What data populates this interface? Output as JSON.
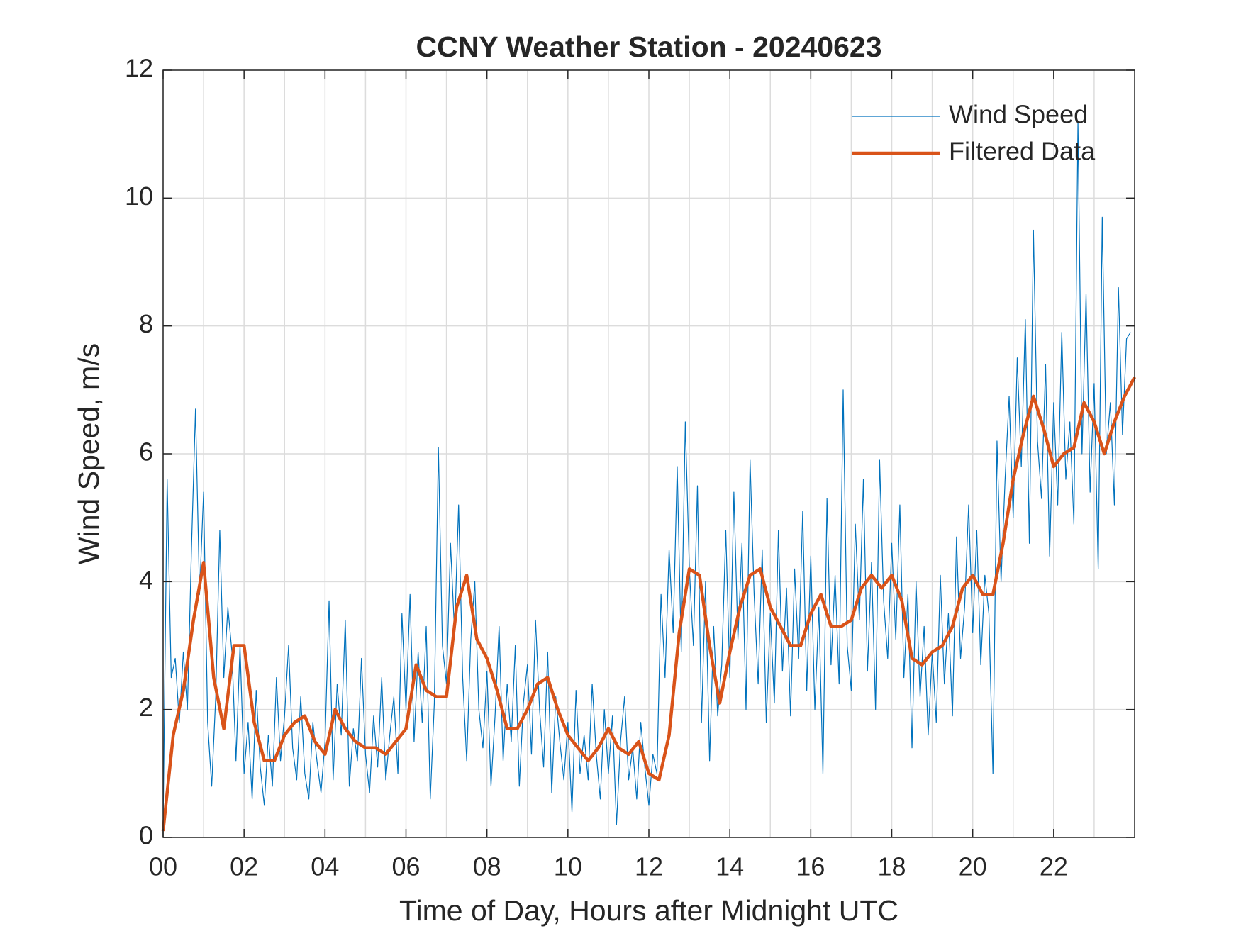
{
  "chart_data": {
    "type": "line",
    "title": "CCNY Weather Station - 20240623",
    "xlabel": "Time of Day, Hours after Midnight UTC",
    "ylabel": "Wind Speed, m/s",
    "xlim": [
      0,
      24
    ],
    "ylim": [
      0,
      12
    ],
    "xticks": [
      {
        "value": 0,
        "label": "00"
      },
      {
        "value": 2,
        "label": "02"
      },
      {
        "value": 4,
        "label": "04"
      },
      {
        "value": 6,
        "label": "06"
      },
      {
        "value": 8,
        "label": "08"
      },
      {
        "value": 10,
        "label": "10"
      },
      {
        "value": 12,
        "label": "12"
      },
      {
        "value": 14,
        "label": "14"
      },
      {
        "value": 16,
        "label": "16"
      },
      {
        "value": 18,
        "label": "18"
      },
      {
        "value": 20,
        "label": "20"
      },
      {
        "value": 22,
        "label": "22"
      }
    ],
    "xminorgrid": [
      1,
      3,
      5,
      7,
      9,
      11,
      13,
      15,
      17,
      19,
      21,
      23
    ],
    "yticks": [
      0,
      2,
      4,
      6,
      8,
      10,
      12
    ],
    "grid": true,
    "legend": "upper right",
    "series": [
      {
        "name": "Wind Speed",
        "color": "#0072BD",
        "width": 1.2,
        "x": [
          0,
          0.1,
          0.2,
          0.3,
          0.4,
          0.5,
          0.6,
          0.7,
          0.8,
          0.9,
          1,
          1.1,
          1.2,
          1.3,
          1.4,
          1.5,
          1.6,
          1.7,
          1.8,
          1.9,
          2,
          2.1,
          2.2,
          2.3,
          2.4,
          2.5,
          2.6,
          2.7,
          2.8,
          2.9,
          3,
          3.1,
          3.2,
          3.3,
          3.4,
          3.5,
          3.6,
          3.7,
          3.8,
          3.9,
          4,
          4.1,
          4.2,
          4.3,
          4.4,
          4.5,
          4.6,
          4.7,
          4.8,
          4.9,
          5,
          5.1,
          5.2,
          5.3,
          5.4,
          5.5,
          5.6,
          5.7,
          5.8,
          5.9,
          6,
          6.1,
          6.2,
          6.3,
          6.4,
          6.5,
          6.6,
          6.7,
          6.8,
          6.9,
          7,
          7.1,
          7.2,
          7.3,
          7.4,
          7.5,
          7.6,
          7.7,
          7.8,
          7.9,
          8,
          8.1,
          8.2,
          8.3,
          8.4,
          8.5,
          8.6,
          8.7,
          8.8,
          8.9,
          9,
          9.1,
          9.2,
          9.3,
          9.4,
          9.5,
          9.6,
          9.7,
          9.8,
          9.9,
          10,
          10.1,
          10.2,
          10.3,
          10.4,
          10.5,
          10.6,
          10.7,
          10.8,
          10.9,
          11,
          11.1,
          11.2,
          11.3,
          11.4,
          11.5,
          11.6,
          11.7,
          11.8,
          11.9,
          12,
          12.1,
          12.2,
          12.3,
          12.4,
          12.5,
          12.6,
          12.7,
          12.8,
          12.9,
          13,
          13.1,
          13.2,
          13.3,
          13.4,
          13.5,
          13.6,
          13.7,
          13.8,
          13.9,
          14,
          14.1,
          14.2,
          14.3,
          14.4,
          14.5,
          14.6,
          14.7,
          14.8,
          14.9,
          15,
          15.1,
          15.2,
          15.3,
          15.4,
          15.5,
          15.6,
          15.7,
          15.8,
          15.9,
          16,
          16.1,
          16.2,
          16.3,
          16.4,
          16.5,
          16.6,
          16.7,
          16.8,
          16.9,
          17,
          17.1,
          17.2,
          17.3,
          17.4,
          17.5,
          17.6,
          17.7,
          17.8,
          17.9,
          18,
          18.1,
          18.2,
          18.3,
          18.4,
          18.5,
          18.6,
          18.7,
          18.8,
          18.9,
          19,
          19.1,
          19.2,
          19.3,
          19.4,
          19.5,
          19.6,
          19.7,
          19.8,
          19.9,
          20,
          20.1,
          20.2,
          20.3,
          20.4,
          20.5,
          20.6,
          20.7,
          20.8,
          20.9,
          21,
          21.1,
          21.2,
          21.3,
          21.4,
          21.5,
          21.6,
          21.7,
          21.8,
          21.9,
          22,
          22.1,
          22.2,
          22.3,
          22.4,
          22.5,
          22.6,
          22.7,
          22.8,
          22.9,
          23,
          23.1,
          23.2,
          23.3,
          23.4,
          23.5,
          23.6,
          23.7,
          23.8,
          23.9
        ],
        "values": [
          0.2,
          5.6,
          2.5,
          2.8,
          1.8,
          2.9,
          2.0,
          4.5,
          6.7,
          3.8,
          5.4,
          1.8,
          0.8,
          2.2,
          4.8,
          2.5,
          3.6,
          2.9,
          1.2,
          3.0,
          1.0,
          1.8,
          0.6,
          2.3,
          1.1,
          0.5,
          1.6,
          0.8,
          2.5,
          1.2,
          1.9,
          3.0,
          1.4,
          0.9,
          2.2,
          1.0,
          0.6,
          1.8,
          1.2,
          0.7,
          1.5,
          3.7,
          0.9,
          2.4,
          1.6,
          3.4,
          0.8,
          1.7,
          1.2,
          2.8,
          1.3,
          0.7,
          1.9,
          1.1,
          2.5,
          0.9,
          1.6,
          2.2,
          1.0,
          3.5,
          2.0,
          3.8,
          1.5,
          2.9,
          1.8,
          3.3,
          0.6,
          2.1,
          6.1,
          3.0,
          2.4,
          4.6,
          3.2,
          5.2,
          2.5,
          1.2,
          3.1,
          4.0,
          2.0,
          1.4,
          2.6,
          0.8,
          1.9,
          3.3,
          1.2,
          2.4,
          1.5,
          3.0,
          0.8,
          2.1,
          2.7,
          1.3,
          3.4,
          2.0,
          1.1,
          2.9,
          0.7,
          2.2,
          1.5,
          0.9,
          1.8,
          0.4,
          2.3,
          1.0,
          1.6,
          0.9,
          2.4,
          1.3,
          0.6,
          2.0,
          1.0,
          1.9,
          0.2,
          1.5,
          2.2,
          0.9,
          1.4,
          0.6,
          1.8,
          1.1,
          0.5,
          1.3,
          1.0,
          3.8,
          2.5,
          4.5,
          3.2,
          5.8,
          2.9,
          6.5,
          4.2,
          3.0,
          5.5,
          1.8,
          4.0,
          1.2,
          3.3,
          1.9,
          2.7,
          4.8,
          2.5,
          5.4,
          3.1,
          4.6,
          2.0,
          5.9,
          3.8,
          2.4,
          4.5,
          1.8,
          3.5,
          2.1,
          4.8,
          2.6,
          3.9,
          1.9,
          4.2,
          2.8,
          5.1,
          2.3,
          4.4,
          2.0,
          3.6,
          1.0,
          5.3,
          2.7,
          4.1,
          2.4,
          7.0,
          3.0,
          2.3,
          4.9,
          3.4,
          5.6,
          2.6,
          4.3,
          2.0,
          5.9,
          3.7,
          2.8,
          4.6,
          3.1,
          5.2,
          2.5,
          3.8,
          1.4,
          4.0,
          2.2,
          3.3,
          1.6,
          2.9,
          1.8,
          4.1,
          2.4,
          3.5,
          1.9,
          4.7,
          2.8,
          3.6,
          5.2,
          3.2,
          4.8,
          2.7,
          4.1,
          3.5,
          1.0,
          6.2,
          4.0,
          5.6,
          6.9,
          5.0,
          7.5,
          5.8,
          8.1,
          4.6,
          9.5,
          6.2,
          5.3,
          7.4,
          4.4,
          6.8,
          5.2,
          7.9,
          5.6,
          6.5,
          4.9,
          11.2,
          6.0,
          8.5,
          5.4,
          7.1,
          4.2,
          9.7,
          6.0,
          6.8,
          5.2,
          8.6,
          6.3,
          7.8,
          7.9
        ]
      },
      {
        "name": "Filtered Data",
        "color": "#D95319",
        "width": 4.5,
        "x": [
          0,
          0.25,
          0.5,
          0.75,
          1,
          1.25,
          1.5,
          1.75,
          2,
          2.25,
          2.5,
          2.75,
          3,
          3.25,
          3.5,
          3.75,
          4,
          4.25,
          4.5,
          4.75,
          5,
          5.25,
          5.5,
          5.75,
          6,
          6.25,
          6.5,
          6.75,
          7,
          7.25,
          7.5,
          7.75,
          8,
          8.25,
          8.5,
          8.75,
          9,
          9.25,
          9.5,
          9.75,
          10,
          10.25,
          10.5,
          10.75,
          11,
          11.25,
          11.5,
          11.75,
          12,
          12.25,
          12.5,
          12.75,
          13,
          13.25,
          13.5,
          13.75,
          14,
          14.25,
          14.5,
          14.75,
          15,
          15.25,
          15.5,
          15.75,
          16,
          16.25,
          16.5,
          16.75,
          17,
          17.25,
          17.5,
          17.75,
          18,
          18.25,
          18.5,
          18.75,
          19,
          19.25,
          19.5,
          19.75,
          20,
          20.25,
          20.5,
          20.75,
          21,
          21.25,
          21.5,
          21.75,
          22,
          22.25,
          22.5,
          22.75,
          23,
          23.25,
          23.5,
          23.75,
          24
        ],
        "values": [
          0.1,
          1.6,
          2.3,
          3.4,
          4.3,
          2.5,
          1.7,
          3.0,
          3.0,
          1.8,
          1.2,
          1.2,
          1.6,
          1.8,
          1.9,
          1.5,
          1.3,
          2.0,
          1.7,
          1.5,
          1.4,
          1.4,
          1.3,
          1.5,
          1.7,
          2.7,
          2.3,
          2.2,
          2.2,
          3.6,
          4.1,
          3.1,
          2.8,
          2.3,
          1.7,
          1.7,
          2.0,
          2.4,
          2.5,
          2.0,
          1.6,
          1.4,
          1.2,
          1.4,
          1.7,
          1.4,
          1.3,
          1.5,
          1.0,
          0.9,
          1.6,
          3.2,
          4.2,
          4.1,
          3.0,
          2.1,
          2.9,
          3.6,
          4.1,
          4.2,
          3.6,
          3.3,
          3.0,
          3.0,
          3.5,
          3.8,
          3.3,
          3.3,
          3.4,
          3.9,
          4.1,
          3.9,
          4.1,
          3.7,
          2.8,
          2.7,
          2.9,
          3.0,
          3.3,
          3.9,
          4.1,
          3.8,
          3.8,
          4.6,
          5.6,
          6.3,
          6.9,
          6.4,
          5.8,
          6.0,
          6.1,
          6.8,
          6.5,
          6.0,
          6.5,
          6.9,
          7.2
        ]
      }
    ]
  }
}
